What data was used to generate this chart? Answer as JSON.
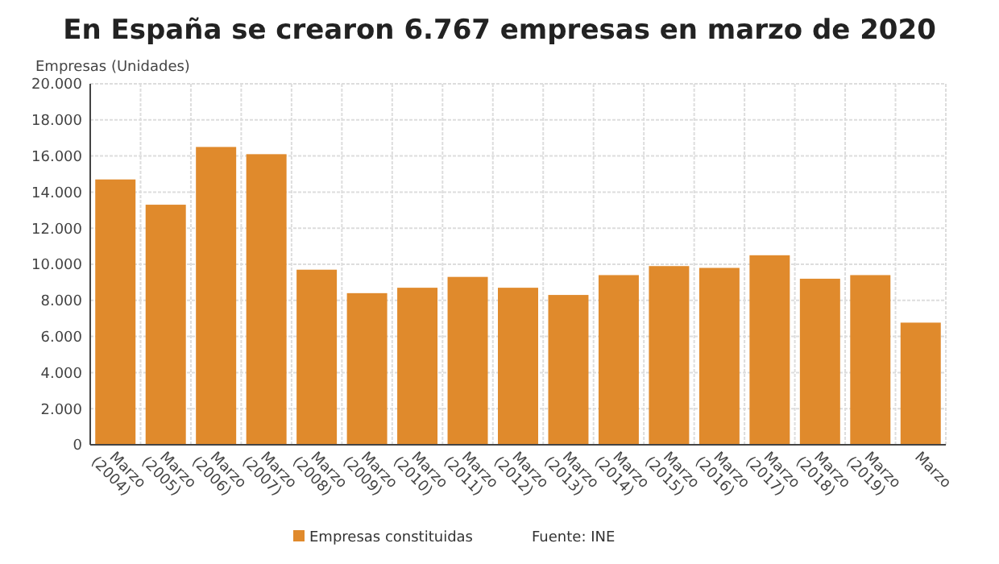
{
  "chart_data": {
    "type": "bar",
    "title": "En España se crearon 6.767 empresas en marzo de 2020",
    "ylabel": "Empresas (Unidades)",
    "categories": [
      "Marzo (2004)",
      "Marzo (2005)",
      "Marzo (2006)",
      "Marzo (2007)",
      "Marzo (2008)",
      "Marzo (2009)",
      "Marzo (2010)",
      "Marzo (2011)",
      "Marzo (2012)",
      "Marzo (2013)",
      "Marzo (2014)",
      "Marzo (2015)",
      "Marzo (2016)",
      "Marzo (2017)",
      "Marzo (2018)",
      "Marzo (2019)",
      "Marzo"
    ],
    "series": [
      {
        "name": "Empresas constituidas",
        "color": "#e08a2c",
        "values": [
          14700,
          13300,
          16500,
          16100,
          9700,
          8400,
          8700,
          9300,
          8700,
          8300,
          9400,
          9900,
          9800,
          10500,
          9200,
          9400,
          6767
        ]
      }
    ],
    "ylim": [
      0,
      20000
    ],
    "yticks": [
      {
        "value": 0,
        "label": "0"
      },
      {
        "value": 2000,
        "label": "2.000"
      },
      {
        "value": 4000,
        "label": "4.000"
      },
      {
        "value": 6000,
        "label": "6.000"
      },
      {
        "value": 8000,
        "label": "8.000"
      },
      {
        "value": 10000,
        "label": "10.000"
      },
      {
        "value": 12000,
        "label": "12.000"
      },
      {
        "value": 14000,
        "label": "14.000"
      },
      {
        "value": 16000,
        "label": "16.000"
      },
      {
        "value": 18000,
        "label": "18.000"
      },
      {
        "value": 20000,
        "label": "20.000"
      }
    ],
    "grid": true,
    "legend": "bottom",
    "annotations": [
      "Fuente: INE"
    ]
  }
}
